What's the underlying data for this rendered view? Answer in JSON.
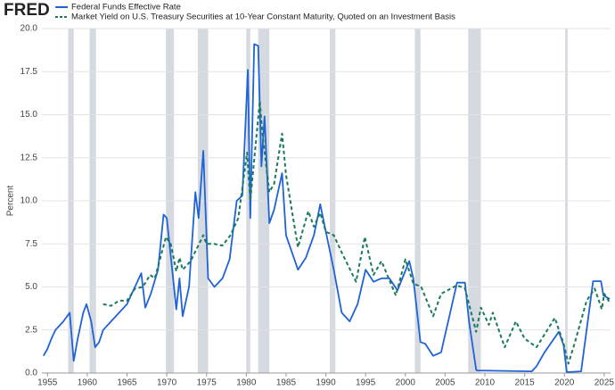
{
  "chart_data": {
    "type": "line",
    "logo": "FRED",
    "y_label": "Percent",
    "xlim": [
      1954.3,
      2025.8
    ],
    "xticks": [
      1955,
      1960,
      1965,
      1970,
      1975,
      1980,
      1985,
      1990,
      1995,
      2000,
      2005,
      2010,
      2015,
      2020,
      2025
    ],
    "ylim": [
      0,
      20
    ],
    "yticks": [
      {
        "value": 0,
        "label": "0.0"
      },
      2.5,
      {
        "value": 5,
        "label": "5.0"
      },
      7.5,
      {
        "value": 10,
        "label": "10.0"
      },
      12.5,
      {
        "value": 15,
        "label": "15.0"
      },
      17.5,
      {
        "value": 20,
        "label": "20.0"
      }
    ],
    "grid": true,
    "recession_color": "#d5d9e0",
    "recessions": [
      [
        1957.6,
        1958.3
      ],
      [
        1960.3,
        1961.1
      ],
      [
        1969.9,
        1970.9
      ],
      [
        1973.9,
        1975.2
      ],
      [
        1980.0,
        1980.5
      ],
      [
        1981.5,
        1982.9
      ],
      [
        1990.5,
        1991.2
      ],
      [
        2001.2,
        2001.9
      ],
      [
        2007.9,
        2009.5
      ],
      [
        2020.1,
        2020.4
      ]
    ],
    "series": [
      {
        "name": "Federal Funds Effective Rate",
        "color": "#1f63d6",
        "dashed": false,
        "x": [
          1954.5,
          1955.0,
          1955.5,
          1956.0,
          1957.0,
          1957.8,
          1958.3,
          1958.8,
          1959.5,
          1959.9,
          1960.5,
          1961.0,
          1961.5,
          1962.0,
          1963.0,
          1964.0,
          1965.0,
          1966.0,
          1966.8,
          1967.3,
          1968.0,
          1968.9,
          1969.6,
          1970.0,
          1970.8,
          1971.2,
          1971.6,
          1972.0,
          1972.8,
          1973.6,
          1974.0,
          1974.6,
          1975.2,
          1976.0,
          1977.0,
          1977.9,
          1978.8,
          1979.5,
          1980.2,
          1980.5,
          1981.0,
          1981.5,
          1981.9,
          1982.3,
          1982.9,
          1983.5,
          1984.5,
          1985.0,
          1986.5,
          1987.5,
          1988.5,
          1989.3,
          1990.0,
          1991.0,
          1992.0,
          1993.0,
          1994.0,
          1995.0,
          1996.0,
          1997.0,
          1998.0,
          1999.0,
          2000.5,
          2001.0,
          2001.9,
          2002.5,
          2003.5,
          2004.5,
          2006.5,
          2007.5,
          2008.0,
          2008.9,
          2009.0,
          2015.9,
          2016.5,
          2017.5,
          2019.3,
          2019.9,
          2020.3,
          2022.1,
          2023.6,
          2024.6,
          2024.9,
          2025.7
        ],
        "values": [
          1.0,
          1.4,
          2.0,
          2.5,
          3.0,
          3.5,
          0.7,
          2.0,
          3.5,
          4.0,
          3.0,
          1.5,
          1.8,
          2.5,
          3.0,
          3.5,
          4.0,
          5.0,
          5.8,
          3.8,
          4.6,
          6.0,
          9.2,
          9.0,
          5.5,
          3.7,
          5.5,
          3.3,
          5.0,
          10.5,
          9.0,
          12.9,
          5.5,
          5.0,
          5.5,
          6.6,
          10.0,
          10.3,
          17.6,
          9.0,
          19.1,
          19.0,
          12.0,
          14.9,
          8.7,
          9.5,
          11.6,
          8.0,
          6.0,
          6.7,
          8.0,
          9.8,
          8.2,
          6.0,
          3.5,
          3.0,
          4.0,
          6.0,
          5.3,
          5.5,
          5.5,
          4.8,
          6.5,
          5.5,
          1.8,
          1.7,
          1.0,
          1.2,
          5.25,
          5.25,
          3.0,
          0.2,
          0.15,
          0.1,
          0.4,
          1.2,
          2.4,
          1.6,
          0.05,
          0.1,
          5.33,
          5.33,
          4.5,
          4.3
        ]
      },
      {
        "name": "Market Yield on U.S. Treasury Securities at 10-Year Constant Maturity, Quoted on an Investment Basis",
        "color": "#1b7a5c",
        "dashed": true,
        "x": [
          1962.0,
          1963.0,
          1964.0,
          1965.0,
          1966.0,
          1967.0,
          1967.9,
          1968.5,
          1969.9,
          1970.5,
          1971.2,
          1971.6,
          1972.0,
          1973.0,
          1974.6,
          1975.0,
          1976.0,
          1977.0,
          1978.0,
          1979.0,
          1980.1,
          1980.5,
          1981.7,
          1982.0,
          1982.9,
          1983.5,
          1984.5,
          1985.0,
          1986.5,
          1987.8,
          1988.5,
          1989.3,
          1990.0,
          1991.0,
          1992.0,
          1993.8,
          1994.9,
          1996.0,
          1997.0,
          1998.8,
          2000.0,
          2001.0,
          2002.0,
          2003.5,
          2004.5,
          2006.5,
          2007.5,
          2008.9,
          2009.5,
          2010.5,
          2011.0,
          2012.5,
          2013.9,
          2015.0,
          2016.5,
          2018.8,
          2019.9,
          2020.5,
          2021.2,
          2022.8,
          2023.8,
          2024.7,
          2025.0,
          2025.7
        ],
        "values": [
          4.0,
          3.9,
          4.2,
          4.2,
          4.9,
          5.0,
          5.7,
          5.5,
          7.9,
          7.5,
          5.9,
          6.7,
          6.0,
          6.5,
          8.0,
          7.5,
          7.5,
          7.4,
          8.0,
          9.0,
          12.8,
          10.0,
          15.8,
          14.0,
          10.5,
          11.0,
          13.9,
          11.5,
          7.3,
          9.4,
          8.5,
          9.3,
          8.2,
          8.0,
          7.0,
          5.3,
          7.9,
          5.7,
          6.5,
          4.5,
          6.6,
          5.2,
          5.0,
          3.3,
          4.6,
          5.1,
          4.9,
          2.4,
          3.8,
          2.8,
          3.5,
          1.5,
          3.0,
          2.0,
          1.5,
          3.2,
          1.7,
          0.55,
          1.6,
          4.2,
          4.9,
          3.7,
          4.6,
          4.1
        ]
      }
    ]
  }
}
